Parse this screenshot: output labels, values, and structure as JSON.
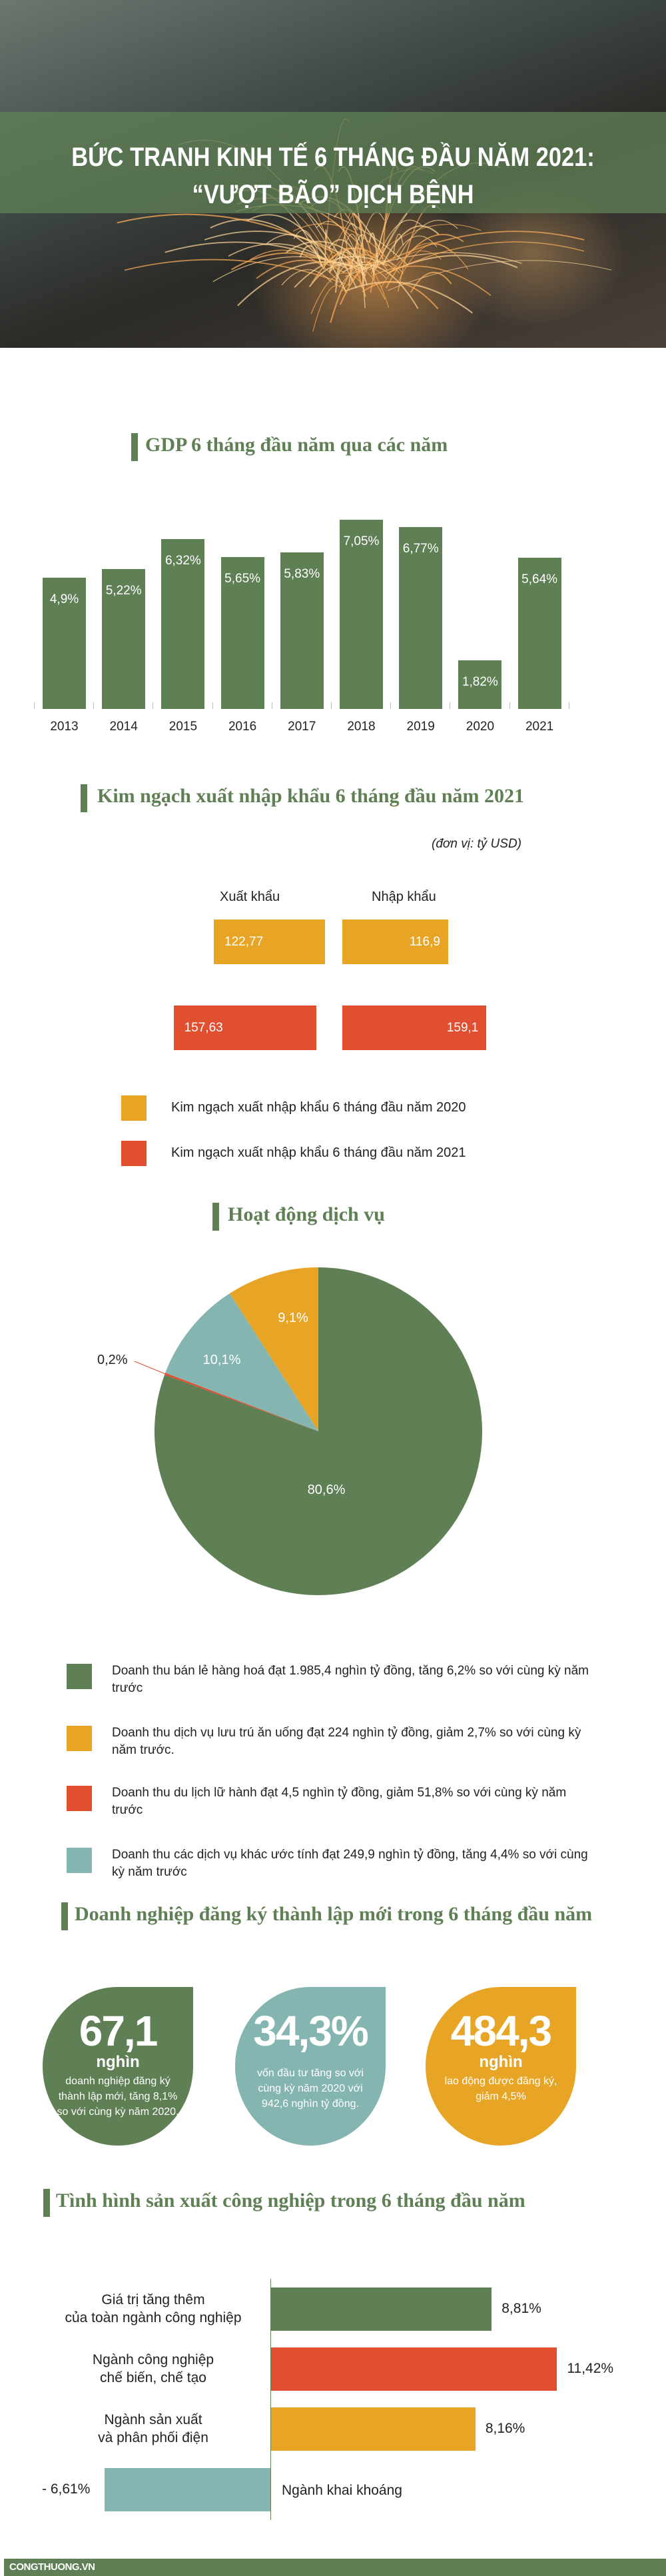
{
  "hero": {
    "title_line1": "BỨC TRANH KINH TẾ 6 THÁNG ĐẦU NĂM 2021:",
    "title_line2": "“VƯỢT BÃO” DỊCH BỆNH"
  },
  "colors": {
    "green": "#5f7f55",
    "orange": "#e8a525",
    "red": "#e04f2f",
    "teal": "#85b5b0"
  },
  "chart_data": [
    {
      "type": "bar",
      "title": "GDP 6 tháng đầu năm qua các năm",
      "categories": [
        "2013",
        "2014",
        "2015",
        "2016",
        "2017",
        "2018",
        "2019",
        "2020",
        "2021"
      ],
      "values": [
        4.9,
        5.22,
        6.32,
        5.65,
        5.83,
        7.05,
        6.77,
        1.82,
        5.64
      ],
      "labels": [
        "4,9%",
        "5,22%",
        "6,32%",
        "5,65%",
        "5,83%",
        "7,05%",
        "6,77%",
        "1,82%",
        "5,64%"
      ],
      "grid": false
    },
    {
      "type": "bar",
      "title": "Kim ngạch xuất nhập khẩu 6 tháng đầu năm 2021",
      "unit": "(đơn vị: tỷ USD)",
      "categories": [
        "Xuất khẩu",
        "Nhập khẩu"
      ],
      "series": [
        {
          "name": "Kim ngạch xuất nhập khẩu 6 tháng đầu năm 2020",
          "color": "#e8a525",
          "values": [
            122.77,
            116.9
          ],
          "labels": [
            "122,77",
            "116,9"
          ]
        },
        {
          "name": "Kim ngạch xuất nhập khẩu 6 tháng đầu năm 2021",
          "color": "#e04f2f",
          "values": [
            157.63,
            159.1
          ],
          "labels": [
            "157,63",
            "159,1"
          ]
        }
      ],
      "legend": "bottom"
    },
    {
      "type": "pie",
      "title": "Hoạt động dịch vụ",
      "slices": [
        {
          "value": 80.6,
          "label": "80,6%",
          "color": "#5f7f55",
          "legend": "Doanh thu bán lẻ hàng hoá đạt 1.985,4 nghìn tỷ đồng, tăng 6,2% so với cùng kỳ năm trước"
        },
        {
          "value": 0.2,
          "label": "0,2%",
          "color": "#e04f2f",
          "legend": "Doanh thu du lịch lữ hành đạt 4,5 nghìn tỷ đồng, giảm 51,8% so với cùng kỳ năm trước"
        },
        {
          "value": 10.1,
          "label": "10,1%",
          "color": "#85b5b0",
          "legend": "Doanh thu các dịch vụ khác ước tính đạt 249,9 nghìn tỷ đồng, tăng 4,4% so với cùng kỳ năm trước"
        },
        {
          "value": 9.1,
          "label": "9,1%",
          "color": "#e8a525",
          "legend": "Doanh thu dịch vụ lưu trú ăn uống đạt 224 nghìn tỷ đồng, giảm 2,7% so với cùng kỳ năm trước."
        }
      ],
      "legend": "bottom"
    },
    {
      "type": "bar",
      "orientation": "horizontal",
      "title": "Tình hình sản xuất công nghiệp trong 6 tháng đầu năm",
      "categories": [
        "Giá trị tăng thêm\ncủa toàn ngành công nghiệp",
        "Ngành công nghiệp\nchế biến, chế tạo",
        "Ngành sản xuất\nvà phân phối điện",
        "Ngành khai khoáng"
      ],
      "values": [
        8.81,
        11.42,
        8.16,
        -6.61
      ],
      "labels": [
        "8,81%",
        "11,42%",
        "8,16%",
        "- 6,61%"
      ],
      "colors": [
        "#5f7f55",
        "#e04f2f",
        "#e8a525",
        "#85b5b0"
      ]
    }
  ],
  "services_legend_order": [
    0,
    3,
    1,
    2
  ],
  "business": {
    "title": "Doanh nghiệp đăng ký thành lập mới trong 6 tháng đầu năm",
    "cards": [
      {
        "value": "67,1",
        "unit": "nghìn",
        "desc": "doanh nghiệp đăng ký thành lập mới, tăng 8,1% so với cùng kỳ năm 2020.",
        "color": "#5f7f55"
      },
      {
        "value": "34,3%",
        "unit": "",
        "desc": "vốn đầu tư tăng so với cùng kỳ năm 2020 với 942,6 nghìn tỷ đồng.",
        "color": "#85b5b0"
      },
      {
        "value": "484,3",
        "unit": "nghìn",
        "desc": "lao động được đăng ký, giảm 4,5%",
        "color": "#e8a525"
      }
    ]
  },
  "footer": {
    "brand": "CONGTHUONG.VN"
  }
}
